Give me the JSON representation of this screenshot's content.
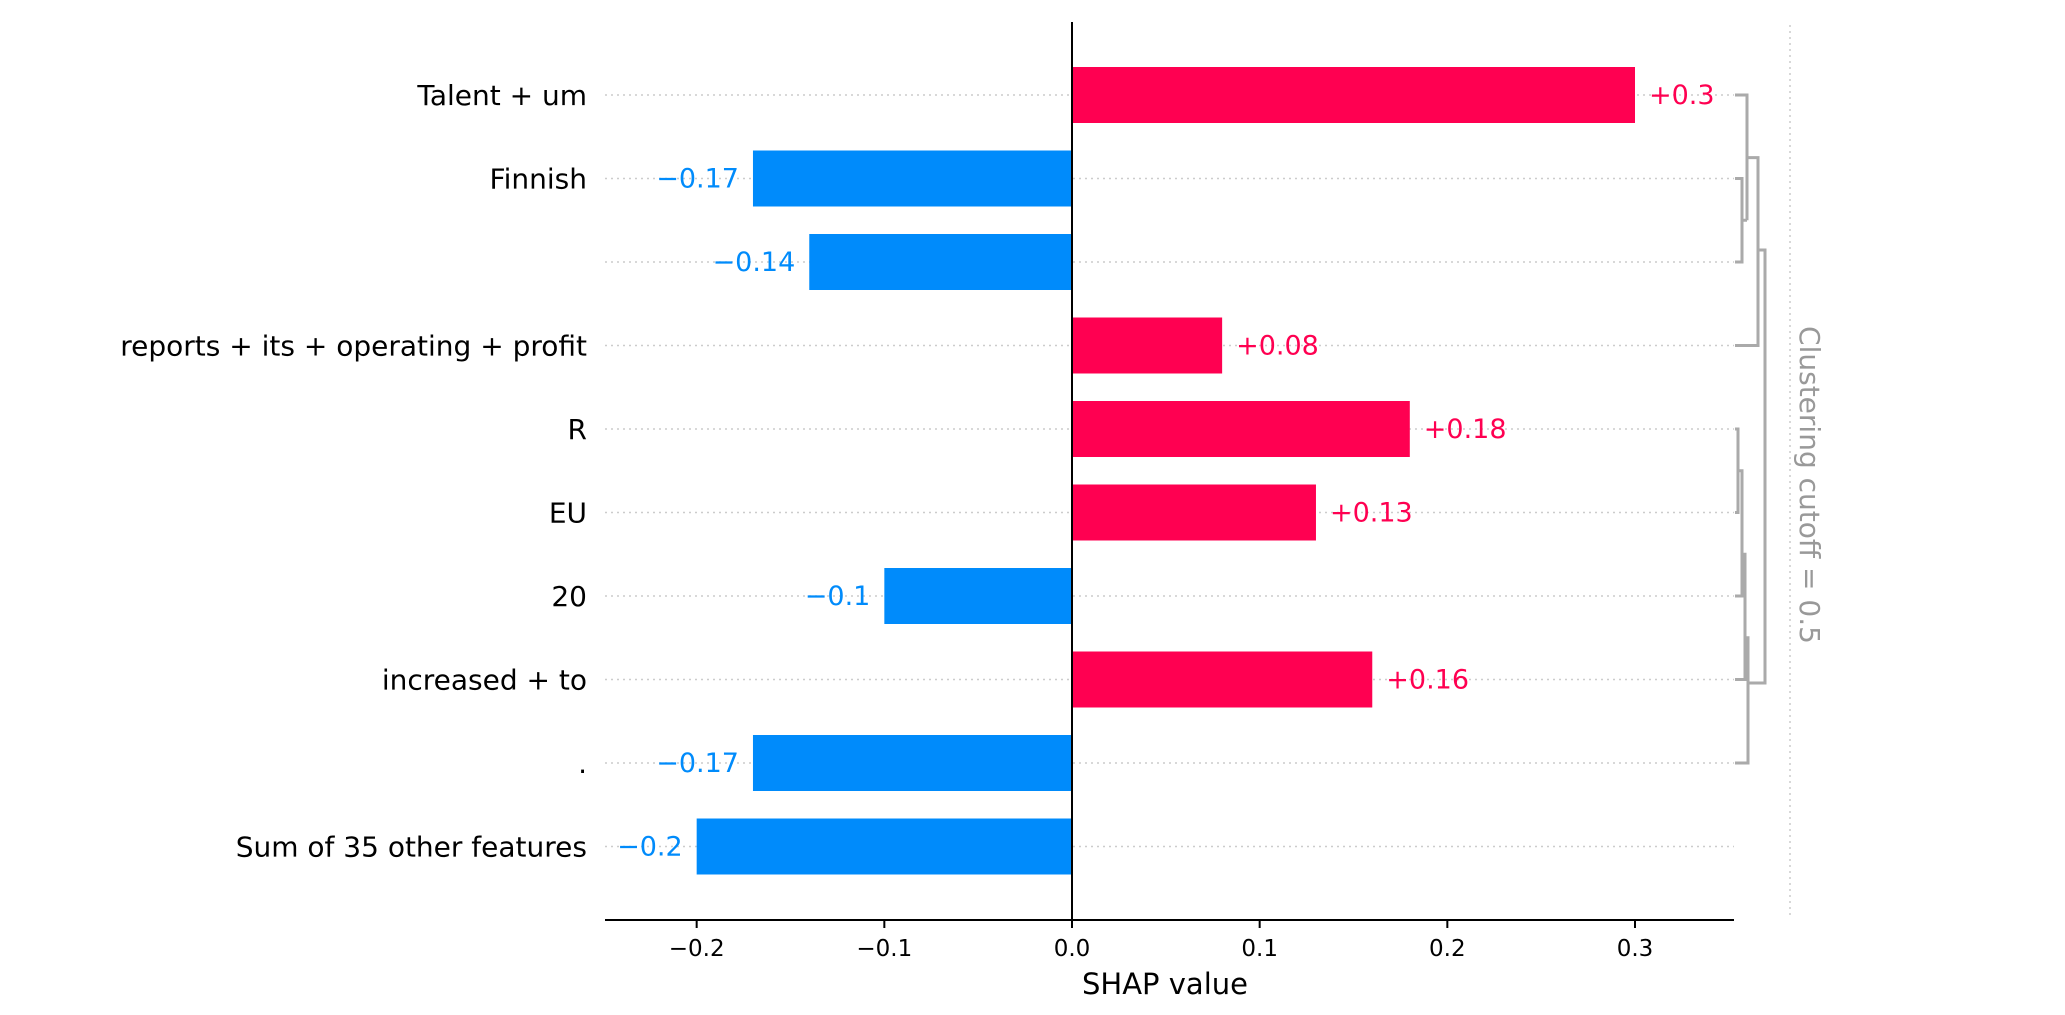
{
  "chart_data": {
    "type": "bar",
    "orientation": "horizontal",
    "xlabel": "SHAP value",
    "xlim": [
      -0.25,
      0.355
    ],
    "xticks": [
      -0.2,
      -0.1,
      0.0,
      0.1,
      0.2,
      0.3
    ],
    "xtick_labels": [
      "−0.2",
      "−0.1",
      "0.0",
      "0.1",
      "0.2",
      "0.3"
    ],
    "grid": "dotted horizontal lines per row",
    "categories": [
      "Talent + um",
      "Finnish",
      "",
      "reports + its + operating + profit",
      "R",
      "EU",
      "20",
      "increased + to",
      ".",
      "Sum of 35 other features"
    ],
    "values": [
      0.3,
      -0.17,
      -0.14,
      0.08,
      0.18,
      0.13,
      -0.1,
      0.16,
      -0.17,
      -0.2
    ],
    "value_labels": [
      "+0.3",
      "−0.17",
      "−0.14",
      "+0.08",
      "+0.18",
      "+0.13",
      "−0.1",
      "+0.16",
      "−0.17",
      "−0.2"
    ],
    "colors": {
      "positive": "#ff0051",
      "negative": "#008bfb",
      "dendrogram": "#aaaaaa",
      "cutoff_text": "#999999",
      "grid": "#cccccc"
    },
    "clustering_cutoff_label": "Clustering cutoff = 0.5"
  }
}
